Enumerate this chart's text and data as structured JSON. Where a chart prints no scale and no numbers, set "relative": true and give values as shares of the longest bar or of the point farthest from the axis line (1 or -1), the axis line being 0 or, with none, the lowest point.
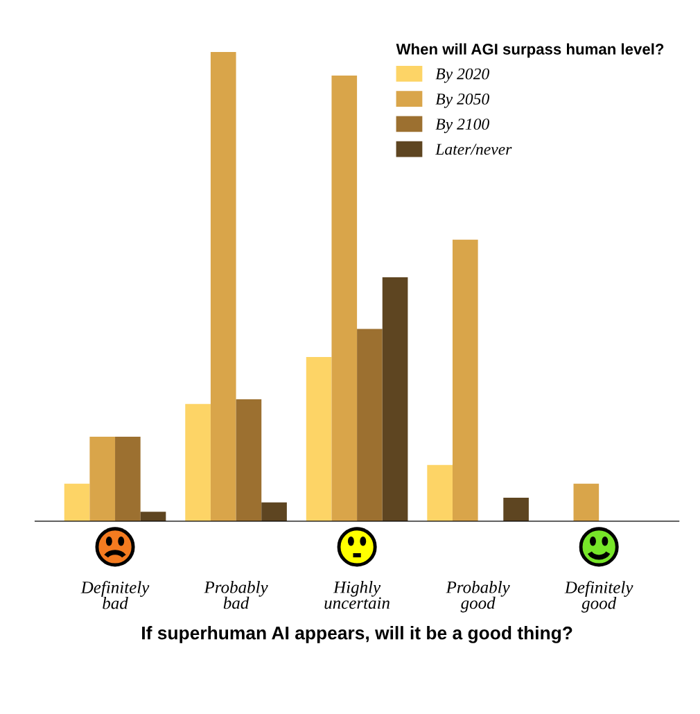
{
  "chart_data": {
    "type": "bar",
    "relative": true,
    "xlabel": "If superhuman AI appears, will it be a good thing?",
    "legend_title": "When will AGI surpass human level?",
    "legend": "top right",
    "categories": [
      "Definitely bad",
      "Probably bad",
      "Highly uncertain",
      "Probably good",
      "Definitely good"
    ],
    "series": [
      {
        "name": "By 2020",
        "color": "#fdd466",
        "values": [
          0.08,
          0.25,
          0.35,
          0.12,
          0
        ]
      },
      {
        "name": "By 2050",
        "color": "#d9a54a",
        "values": [
          0.18,
          1,
          0.95,
          0.6,
          0.08
        ]
      },
      {
        "name": "By 2100",
        "color": "#9c7030",
        "values": [
          0.18,
          0.26,
          0.41,
          0,
          0
        ]
      },
      {
        "name": "Later/never",
        "color": "#5e4521",
        "values": [
          0.02,
          0.04,
          0.52,
          0.05,
          0
        ]
      }
    ]
  }
}
